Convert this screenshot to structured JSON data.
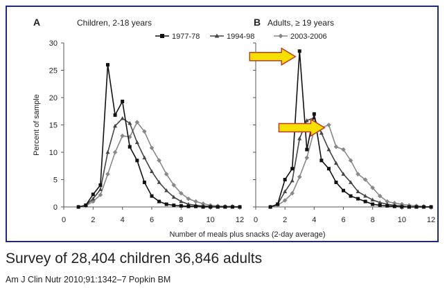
{
  "chart_data": [
    {
      "type": "line",
      "panel_label": "A",
      "title": "Children, 2-18 years",
      "xlabel": "Number of meals plus snacks (2-day average)",
      "ylabel": "Percent of sample",
      "xlim": [
        0,
        12
      ],
      "ylim": [
        0,
        30
      ],
      "xticks": [
        "0",
        "2",
        "4",
        "6",
        "8",
        "10",
        "12"
      ],
      "yticks": [
        "0",
        "5",
        "10",
        "15",
        "20",
        "25",
        "30"
      ],
      "x": [
        1,
        1.5,
        2,
        2.5,
        3,
        3.5,
        4,
        4.5,
        5,
        5.5,
        6,
        6.5,
        7,
        7.5,
        8,
        8.5,
        9,
        9.5,
        10,
        10.5,
        11,
        11.5,
        12
      ],
      "series": [
        {
          "name": "1977-78",
          "marker": "square",
          "color": "#111111",
          "values": [
            0,
            0.3,
            2.3,
            4,
            26,
            16.8,
            19.3,
            11,
            8.5,
            4.5,
            2,
            1,
            0.5,
            0.3,
            0.2,
            0.1,
            0.1,
            0,
            0,
            0,
            0,
            0,
            0
          ]
        },
        {
          "name": "1994-98",
          "marker": "triangle",
          "color": "#444444",
          "values": [
            0,
            0.3,
            1.5,
            3.2,
            10,
            14.8,
            16.2,
            15.3,
            11.8,
            9,
            6.5,
            4.5,
            3,
            1.8,
            1,
            0.5,
            0.3,
            0.2,
            0.1,
            0,
            0,
            0,
            0
          ]
        },
        {
          "name": "2003-2006",
          "marker": "diamond",
          "color": "#888888",
          "values": [
            0,
            0.2,
            1,
            2.2,
            6,
            10,
            13,
            12.8,
            15.5,
            13.8,
            10.8,
            8.5,
            6,
            4,
            2.5,
            1.5,
            1,
            0.6,
            0.3,
            0.2,
            0.1,
            0.1,
            0
          ]
        }
      ]
    },
    {
      "type": "line",
      "panel_label": "B",
      "title": "Adults, ≥ 19 years",
      "xlabel": "Number of meals plus snacks (2-day average)",
      "ylabel": "Percent of sample",
      "xlim": [
        0,
        12
      ],
      "ylim": [
        0,
        30
      ],
      "xticks": [
        "0",
        "2",
        "4",
        "6",
        "8",
        "10",
        "12"
      ],
      "x": [
        1,
        1.5,
        2,
        2.5,
        3,
        3.5,
        4,
        4.5,
        5,
        5.5,
        6,
        6.5,
        7,
        7.5,
        8,
        8.5,
        9,
        9.5,
        10,
        10.5,
        11,
        11.5,
        12
      ],
      "series": [
        {
          "name": "1977-78",
          "marker": "square",
          "color": "#111111",
          "values": [
            0,
            0.5,
            5,
            7,
            28.5,
            10.5,
            17,
            8.5,
            7,
            4.5,
            3,
            2,
            1.5,
            1,
            0.5,
            0.3,
            0.2,
            0.1,
            0,
            0,
            0,
            0,
            0
          ]
        },
        {
          "name": "1994-98",
          "marker": "triangle",
          "color": "#444444",
          "values": [
            0,
            0.5,
            2.8,
            4.8,
            12.5,
            15.8,
            16.3,
            13.5,
            10.5,
            8,
            6,
            4.5,
            2.8,
            2,
            1.3,
            0.8,
            0.5,
            0.3,
            0.2,
            0,
            0,
            0,
            0
          ]
        },
        {
          "name": "2003-2006",
          "marker": "diamond",
          "color": "#888888",
          "values": [
            0,
            0.3,
            1.2,
            2.5,
            5.5,
            9,
            14,
            14.5,
            15,
            11,
            10.5,
            8.5,
            6,
            5,
            3.5,
            2,
            1,
            0.7,
            0.5,
            0.3,
            0.2,
            0.1,
            0
          ]
        }
      ],
      "annotations": [
        {
          "type": "arrow",
          "color": "#f5e000",
          "points_to_x": 3,
          "points_to_y": 27.5
        },
        {
          "type": "arrow",
          "color": "#f5e000",
          "points_to_x": 5,
          "points_to_y": 14.5
        }
      ]
    }
  ],
  "legend": [
    "1977-78",
    "1994-98",
    "2003-2006"
  ],
  "caption": {
    "main": "Survey of 28,404 children 36,846 adults",
    "citation": "Am J Clin Nutr 2010;91:1342–7 Popkin BM"
  }
}
